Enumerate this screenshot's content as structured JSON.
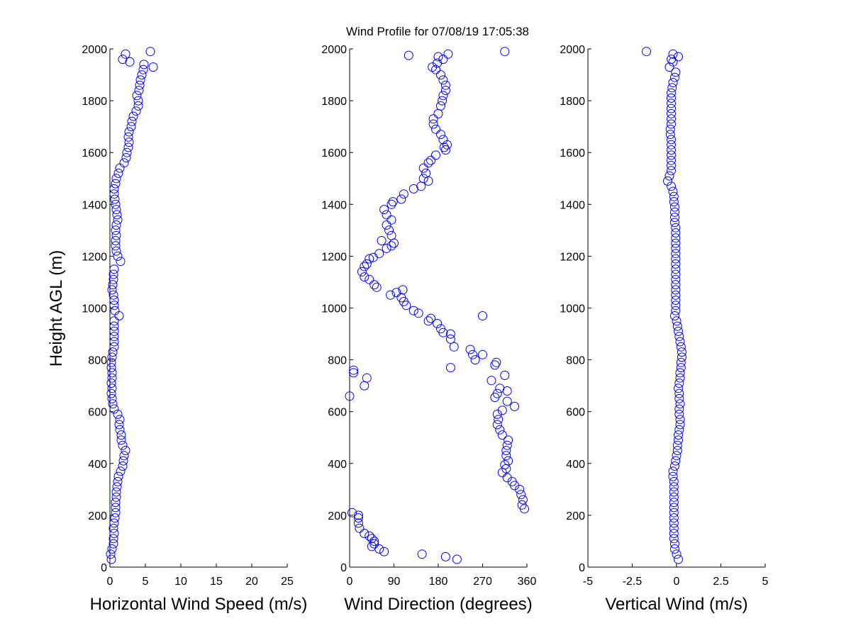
{
  "title": "Wind Profile for  07/08/19 17:05:38",
  "colors": {
    "marker": "#0000ff",
    "axis": "#000000",
    "background": "#ffffff"
  },
  "chart_data": [
    {
      "type": "scatter",
      "xlabel": "Horizontal Wind Speed (m/s)",
      "ylabel": "Height AGL (m)",
      "xlim": [
        0,
        25
      ],
      "ylim": [
        0,
        2000
      ],
      "xticks": [
        "0",
        "5",
        "10",
        "15",
        "20",
        "25"
      ],
      "yticks": [
        "0",
        "200",
        "400",
        "600",
        "800",
        "1000",
        "1200",
        "1400",
        "1600",
        "1800",
        "2000"
      ],
      "points": [
        [
          0.2,
          30
        ],
        [
          0.1,
          50
        ],
        [
          0.3,
          70
        ],
        [
          0.5,
          90
        ],
        [
          0.5,
          110
        ],
        [
          0.6,
          130
        ],
        [
          0.5,
          150
        ],
        [
          0.6,
          170
        ],
        [
          0.7,
          190
        ],
        [
          0.8,
          210
        ],
        [
          0.8,
          230
        ],
        [
          0.8,
          250
        ],
        [
          0.9,
          270
        ],
        [
          0.9,
          290
        ],
        [
          1.0,
          310
        ],
        [
          1.1,
          330
        ],
        [
          1.2,
          350
        ],
        [
          1.5,
          370
        ],
        [
          1.8,
          390
        ],
        [
          1.9,
          410
        ],
        [
          2.0,
          430
        ],
        [
          2.2,
          450
        ],
        [
          1.8,
          470
        ],
        [
          1.6,
          490
        ],
        [
          1.6,
          510
        ],
        [
          1.4,
          530
        ],
        [
          1.3,
          550
        ],
        [
          1.4,
          570
        ],
        [
          1.1,
          590
        ],
        [
          0.6,
          610
        ],
        [
          0.4,
          630
        ],
        [
          0.3,
          650
        ],
        [
          0.2,
          670
        ],
        [
          0.3,
          690
        ],
        [
          0.2,
          710
        ],
        [
          0.3,
          730
        ],
        [
          0.3,
          750
        ],
        [
          0.2,
          770
        ],
        [
          0.2,
          790
        ],
        [
          0.3,
          810
        ],
        [
          0.4,
          830
        ],
        [
          0.6,
          850
        ],
        [
          0.6,
          870
        ],
        [
          0.6,
          890
        ],
        [
          0.6,
          910
        ],
        [
          0.6,
          930
        ],
        [
          0.6,
          950
        ],
        [
          1.3,
          970
        ],
        [
          0.7,
          990
        ],
        [
          0.6,
          1010
        ],
        [
          0.6,
          1030
        ],
        [
          0.5,
          1050
        ],
        [
          0.3,
          1070
        ],
        [
          0.4,
          1090
        ],
        [
          0.5,
          1110
        ],
        [
          0.5,
          1130
        ],
        [
          0.6,
          1150
        ],
        [
          1.5,
          1180
        ],
        [
          1.1,
          1200
        ],
        [
          0.9,
          1220
        ],
        [
          0.8,
          1240
        ],
        [
          0.8,
          1260
        ],
        [
          0.9,
          1280
        ],
        [
          0.8,
          1300
        ],
        [
          0.9,
          1320
        ],
        [
          1.1,
          1340
        ],
        [
          1.0,
          1360
        ],
        [
          0.9,
          1380
        ],
        [
          0.8,
          1400
        ],
        [
          0.7,
          1420
        ],
        [
          0.6,
          1440
        ],
        [
          0.6,
          1460
        ],
        [
          0.8,
          1480
        ],
        [
          0.9,
          1500
        ],
        [
          1.2,
          1520
        ],
        [
          1.4,
          1540
        ],
        [
          2.0,
          1560
        ],
        [
          2.3,
          1580
        ],
        [
          2.4,
          1600
        ],
        [
          2.6,
          1620
        ],
        [
          2.7,
          1640
        ],
        [
          2.6,
          1660
        ],
        [
          2.7,
          1680
        ],
        [
          3.0,
          1700
        ],
        [
          3.1,
          1720
        ],
        [
          3.3,
          1740
        ],
        [
          3.7,
          1760
        ],
        [
          4.0,
          1780
        ],
        [
          4.0,
          1800
        ],
        [
          3.8,
          1820
        ],
        [
          4.1,
          1840
        ],
        [
          4.2,
          1860
        ],
        [
          4.3,
          1880
        ],
        [
          4.5,
          1900
        ],
        [
          4.7,
          1920
        ],
        [
          4.8,
          1940
        ],
        [
          6.1,
          1930
        ],
        [
          2.8,
          1950
        ],
        [
          1.8,
          1960
        ],
        [
          2.2,
          1980
        ],
        [
          5.7,
          1990
        ]
      ]
    },
    {
      "type": "scatter",
      "xlabel": "Wind Direction (degrees)",
      "ylabel": "",
      "xlim": [
        0,
        360
      ],
      "ylim": [
        0,
        2000
      ],
      "xticks": [
        "0",
        "90",
        "180",
        "270",
        "360"
      ],
      "yticks": [
        "0",
        "200",
        "400",
        "600",
        "800",
        "1000",
        "1200",
        "1400",
        "1600",
        "1800",
        "2000"
      ],
      "points": [
        [
          218,
          30
        ],
        [
          195,
          40
        ],
        [
          147,
          50
        ],
        [
          70,
          60
        ],
        [
          60,
          70
        ],
        [
          45,
          80
        ],
        [
          50,
          90
        ],
        [
          50,
          100
        ],
        [
          45,
          110
        ],
        [
          40,
          120
        ],
        [
          30,
          130
        ],
        [
          20,
          150
        ],
        [
          18,
          170
        ],
        [
          18,
          190
        ],
        [
          18,
          200
        ],
        [
          5,
          210
        ],
        [
          355,
          225
        ],
        [
          350,
          240
        ],
        [
          352,
          260
        ],
        [
          348,
          280
        ],
        [
          345,
          300
        ],
        [
          335,
          315
        ],
        [
          330,
          330
        ],
        [
          320,
          345
        ],
        [
          310,
          365
        ],
        [
          318,
          380
        ],
        [
          315,
          395
        ],
        [
          322,
          410
        ],
        [
          318,
          430
        ],
        [
          318,
          450
        ],
        [
          320,
          470
        ],
        [
          322,
          490
        ],
        [
          310,
          510
        ],
        [
          305,
          530
        ],
        [
          300,
          550
        ],
        [
          302,
          570
        ],
        [
          300,
          590
        ],
        [
          310,
          605
        ],
        [
          335,
          620
        ],
        [
          320,
          640
        ],
        [
          295,
          655
        ],
        [
          300,
          670
        ],
        [
          320,
          680
        ],
        [
          305,
          690
        ],
        [
          288,
          720
        ],
        [
          315,
          740
        ],
        [
          295,
          780
        ],
        [
          298,
          790
        ],
        [
          205,
          770
        ],
        [
          8,
          750
        ],
        [
          8,
          760
        ],
        [
          30,
          700
        ],
        [
          35,
          730
        ],
        [
          0,
          660
        ],
        [
          255,
          800
        ],
        [
          250,
          820
        ],
        [
          245,
          840
        ],
        [
          270,
          820
        ],
        [
          212,
          850
        ],
        [
          205,
          880
        ],
        [
          205,
          900
        ],
        [
          190,
          905
        ],
        [
          185,
          920
        ],
        [
          178,
          940
        ],
        [
          165,
          960
        ],
        [
          160,
          950
        ],
        [
          270,
          970
        ],
        [
          140,
          980
        ],
        [
          130,
          990
        ],
        [
          115,
          1010
        ],
        [
          110,
          1025
        ],
        [
          105,
          1040
        ],
        [
          108,
          1070
        ],
        [
          95,
          1060
        ],
        [
          83,
          1050
        ],
        [
          55,
          1080
        ],
        [
          50,
          1090
        ],
        [
          40,
          1110
        ],
        [
          30,
          1120
        ],
        [
          25,
          1140
        ],
        [
          30,
          1160
        ],
        [
          35,
          1170
        ],
        [
          60,
          1210
        ],
        [
          48,
          1195
        ],
        [
          40,
          1190
        ],
        [
          75,
          1230
        ],
        [
          85,
          1240
        ],
        [
          90,
          1250
        ],
        [
          65,
          1260
        ],
        [
          85,
          1280
        ],
        [
          80,
          1300
        ],
        [
          75,
          1320
        ],
        [
          85,
          1340
        ],
        [
          75,
          1360
        ],
        [
          70,
          1380
        ],
        [
          85,
          1400
        ],
        [
          88,
          1410
        ],
        [
          105,
          1420
        ],
        [
          110,
          1440
        ],
        [
          130,
          1460
        ],
        [
          145,
          1470
        ],
        [
          160,
          1490
        ],
        [
          150,
          1500
        ],
        [
          155,
          1520
        ],
        [
          150,
          1540
        ],
        [
          160,
          1560
        ],
        [
          165,
          1570
        ],
        [
          175,
          1590
        ],
        [
          195,
          1610
        ],
        [
          198,
          1630
        ],
        [
          192,
          1620
        ],
        [
          190,
          1650
        ],
        [
          185,
          1670
        ],
        [
          175,
          1690
        ],
        [
          170,
          1710
        ],
        [
          170,
          1730
        ],
        [
          180,
          1750
        ],
        [
          185,
          1780
        ],
        [
          188,
          1800
        ],
        [
          190,
          1820
        ],
        [
          195,
          1840
        ],
        [
          195,
          1860
        ],
        [
          190,
          1880
        ],
        [
          185,
          1900
        ],
        [
          175,
          1920
        ],
        [
          168,
          1930
        ],
        [
          178,
          1945
        ],
        [
          190,
          1960
        ],
        [
          180,
          1970
        ],
        [
          200,
          1980
        ],
        [
          120,
          1975
        ],
        [
          315,
          1990
        ]
      ]
    },
    {
      "type": "scatter",
      "xlabel": "Vertical Wind (m/s)",
      "ylabel": "",
      "xlim": [
        -5,
        5
      ],
      "ylim": [
        0,
        2000
      ],
      "xticks": [
        "-5",
        "-2.5",
        "0",
        "2.5",
        "5"
      ],
      "yticks": [
        "0",
        "200",
        "400",
        "600",
        "800",
        "1000",
        "1200",
        "1400",
        "1600",
        "1800",
        "2000"
      ],
      "points": [
        [
          0.1,
          30
        ],
        [
          0.0,
          50
        ],
        [
          -0.1,
          70
        ],
        [
          -0.1,
          90
        ],
        [
          -0.15,
          110
        ],
        [
          -0.15,
          130
        ],
        [
          -0.15,
          150
        ],
        [
          -0.15,
          170
        ],
        [
          -0.15,
          190
        ],
        [
          -0.15,
          210
        ],
        [
          -0.15,
          230
        ],
        [
          -0.15,
          250
        ],
        [
          -0.15,
          270
        ],
        [
          -0.15,
          290
        ],
        [
          -0.15,
          310
        ],
        [
          -0.15,
          330
        ],
        [
          -0.2,
          350
        ],
        [
          -0.2,
          370
        ],
        [
          -0.1,
          390
        ],
        [
          -0.05,
          410
        ],
        [
          0.0,
          430
        ],
        [
          0.05,
          450
        ],
        [
          0.05,
          470
        ],
        [
          0.1,
          490
        ],
        [
          0.1,
          510
        ],
        [
          0.15,
          530
        ],
        [
          0.2,
          550
        ],
        [
          0.2,
          570
        ],
        [
          0.15,
          590
        ],
        [
          0.15,
          610
        ],
        [
          0.2,
          630
        ],
        [
          0.15,
          650
        ],
        [
          0.15,
          670
        ],
        [
          0.1,
          690
        ],
        [
          0.15,
          710
        ],
        [
          0.2,
          730
        ],
        [
          0.2,
          750
        ],
        [
          0.25,
          770
        ],
        [
          0.25,
          790
        ],
        [
          0.3,
          810
        ],
        [
          0.3,
          830
        ],
        [
          0.25,
          850
        ],
        [
          0.2,
          870
        ],
        [
          0.15,
          890
        ],
        [
          0.1,
          910
        ],
        [
          0.05,
          930
        ],
        [
          0.0,
          950
        ],
        [
          -0.1,
          970
        ],
        [
          -0.05,
          990
        ],
        [
          -0.05,
          1010
        ],
        [
          -0.05,
          1030
        ],
        [
          -0.05,
          1050
        ],
        [
          -0.05,
          1070
        ],
        [
          -0.05,
          1090
        ],
        [
          -0.05,
          1110
        ],
        [
          -0.05,
          1130
        ],
        [
          -0.05,
          1150
        ],
        [
          -0.05,
          1170
        ],
        [
          -0.05,
          1190
        ],
        [
          -0.05,
          1210
        ],
        [
          -0.05,
          1230
        ],
        [
          -0.05,
          1250
        ],
        [
          -0.05,
          1270
        ],
        [
          -0.05,
          1290
        ],
        [
          -0.05,
          1310
        ],
        [
          -0.1,
          1330
        ],
        [
          -0.1,
          1350
        ],
        [
          -0.1,
          1370
        ],
        [
          -0.1,
          1390
        ],
        [
          -0.15,
          1410
        ],
        [
          -0.15,
          1430
        ],
        [
          -0.2,
          1450
        ],
        [
          -0.3,
          1470
        ],
        [
          -0.5,
          1490
        ],
        [
          -0.4,
          1510
        ],
        [
          -0.3,
          1530
        ],
        [
          -0.3,
          1550
        ],
        [
          -0.3,
          1570
        ],
        [
          -0.3,
          1590
        ],
        [
          -0.3,
          1610
        ],
        [
          -0.3,
          1630
        ],
        [
          -0.3,
          1650
        ],
        [
          -0.35,
          1670
        ],
        [
          -0.35,
          1690
        ],
        [
          -0.3,
          1710
        ],
        [
          -0.3,
          1730
        ],
        [
          -0.3,
          1750
        ],
        [
          -0.3,
          1770
        ],
        [
          -0.3,
          1790
        ],
        [
          -0.3,
          1810
        ],
        [
          -0.3,
          1830
        ],
        [
          -0.25,
          1850
        ],
        [
          -0.2,
          1870
        ],
        [
          -0.1,
          1890
        ],
        [
          -0.05,
          1910
        ],
        [
          -0.4,
          1930
        ],
        [
          -0.2,
          1950
        ],
        [
          -0.3,
          1960
        ],
        [
          0.1,
          1970
        ],
        [
          -0.2,
          1980
        ],
        [
          -1.7,
          1990
        ]
      ]
    }
  ]
}
